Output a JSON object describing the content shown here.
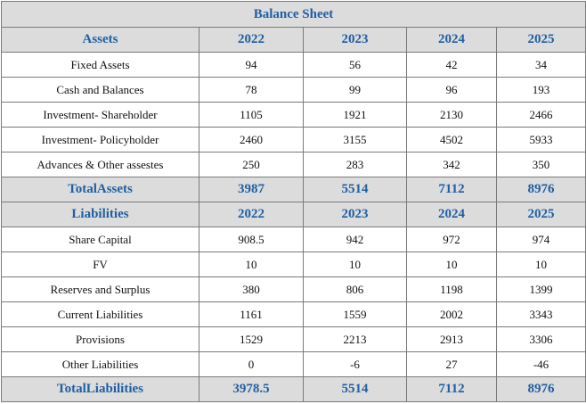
{
  "title": "Balance Sheet",
  "assets": {
    "header": [
      "Assets",
      "2022",
      "2023",
      "2024",
      "2025"
    ],
    "rows": [
      [
        "Fixed Assets",
        "94",
        "56",
        "42",
        "34"
      ],
      [
        "Cash and Balances",
        "78",
        "99",
        "96",
        "193"
      ],
      [
        "Investment- Shareholder",
        "1105",
        "1921",
        "2130",
        "2466"
      ],
      [
        "Investment- Policyholder",
        "2460",
        "3155",
        "4502",
        "5933"
      ],
      [
        "Advances & Other assestes",
        "250",
        "283",
        "342",
        "350"
      ]
    ],
    "total": [
      "TotalAssets",
      "3987",
      "5514",
      "7112",
      "8976"
    ]
  },
  "liabilities": {
    "header": [
      "Liabilities",
      "2022",
      "2023",
      "2024",
      "2025"
    ],
    "rows": [
      [
        "Share Capital",
        "908.5",
        "942",
        "972",
        "974"
      ],
      [
        "FV",
        "10",
        "10",
        "10",
        "10"
      ],
      [
        "Reserves and Surplus",
        "380",
        "806",
        "1198",
        "1399"
      ],
      [
        "Current Liabilities",
        "1161",
        "1559",
        "2002",
        "3343"
      ],
      [
        "Provisions",
        "1529",
        "2213",
        "2913",
        "3306"
      ],
      [
        "Other Liabilities",
        "0",
        "-6",
        "27",
        "-46"
      ]
    ],
    "total": [
      "TotalLiabilities",
      "3978.5",
      "5514",
      "7112",
      "8976"
    ]
  }
}
